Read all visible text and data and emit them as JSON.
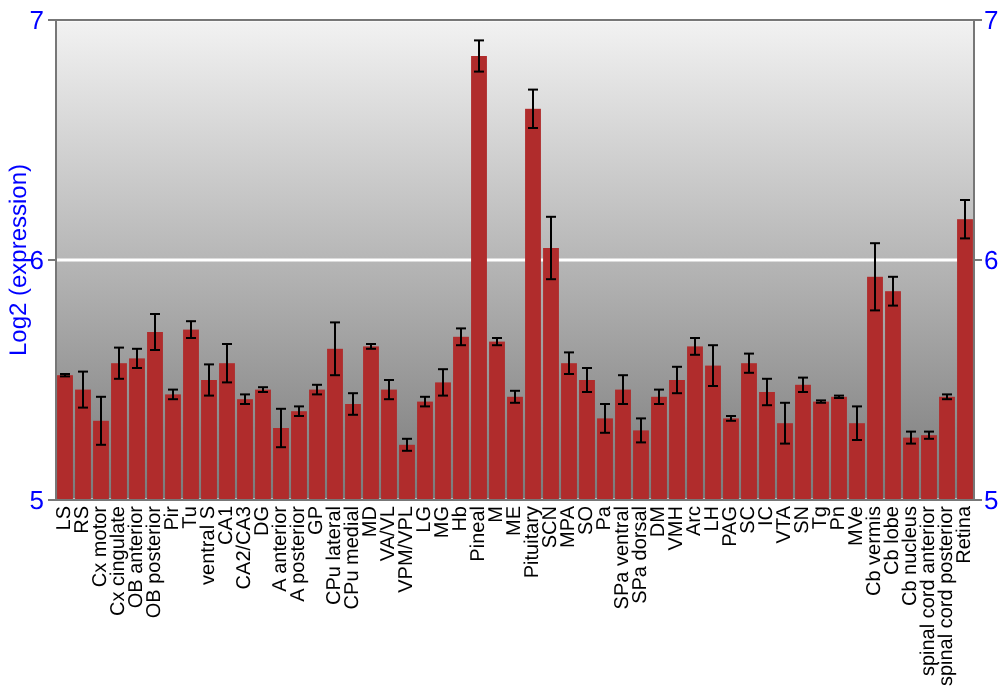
{
  "chart_data": {
    "type": "bar",
    "ylabel": "Log2 (expression)",
    "categories": [
      "LS",
      "RS",
      "Cx motor",
      "Cx cingulate",
      "OB anterior",
      "OB posterior",
      "Pir",
      "Tu",
      "ventral S",
      "CA1",
      "CA2/CA3",
      "DG",
      "A anterior",
      "A posterior",
      "GP",
      "CPu lateral",
      "CPu medial",
      "MD",
      "VA/VL",
      "VPM/VPL",
      "LG",
      "MG",
      "Hb",
      "Pineal",
      "M",
      "ME",
      "Pituitary",
      "SCN",
      "MPA",
      "SO",
      "Pa",
      "SPa ventral",
      "SPa dorsal",
      "DM",
      "VMH",
      "Arc",
      "LH",
      "PAG",
      "SC",
      "IC",
      "VTA",
      "SN",
      "Tg",
      "Pn",
      "MVe",
      "Cb vermis",
      "Cb lobe",
      "Cb nucleus",
      "spinal cord anterior",
      "spinal cord posterior",
      "Retina"
    ],
    "values": [
      5.52,
      5.46,
      5.33,
      5.57,
      5.59,
      5.7,
      5.44,
      5.71,
      5.5,
      5.57,
      5.42,
      5.46,
      5.3,
      5.37,
      5.46,
      5.63,
      5.4,
      5.64,
      5.46,
      5.23,
      5.41,
      5.49,
      5.68,
      6.85,
      5.66,
      5.43,
      6.63,
      6.05,
      5.57,
      5.5,
      5.34,
      5.46,
      5.29,
      5.43,
      5.5,
      5.64,
      5.56,
      5.34,
      5.57,
      5.45,
      5.32,
      5.48,
      5.41,
      5.43,
      5.32,
      5.93,
      5.87,
      5.26,
      5.27,
      5.43,
      6.17
    ],
    "errors": [
      0.005,
      0.075,
      0.1,
      0.065,
      0.04,
      0.075,
      0.02,
      0.035,
      0.065,
      0.08,
      0.02,
      0.01,
      0.08,
      0.02,
      0.02,
      0.11,
      0.045,
      0.01,
      0.04,
      0.025,
      0.02,
      0.055,
      0.035,
      0.065,
      0.015,
      0.025,
      0.08,
      0.13,
      0.045,
      0.05,
      0.06,
      0.06,
      0.05,
      0.03,
      0.055,
      0.035,
      0.085,
      0.01,
      0.04,
      0.055,
      0.085,
      0.03,
      0.005,
      0.005,
      0.07,
      0.14,
      0.06,
      0.025,
      0.015,
      0.01,
      0.08
    ],
    "color": "#b02c2c",
    "ylim": [
      5,
      7
    ],
    "yticks": [
      5,
      6,
      7
    ],
    "y2lim": [
      5,
      7
    ],
    "y2ticks": [
      5,
      6,
      7
    ],
    "grid": "y"
  }
}
